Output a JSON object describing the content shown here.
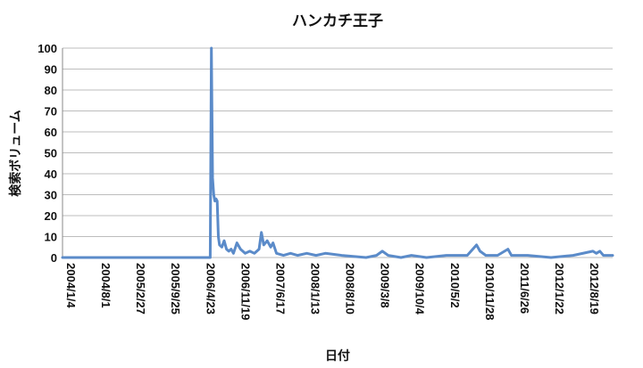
{
  "chart_data": {
    "type": "line",
    "title": "ハンカチ王子",
    "xlabel": "日付",
    "ylabel": "検索ボリューム",
    "ylim": [
      0,
      100
    ],
    "yticks": [
      0,
      10,
      20,
      30,
      40,
      50,
      60,
      70,
      80,
      90,
      100
    ],
    "grid": true,
    "legend": "none",
    "xlim": [
      "2004-01-04",
      "2013-01-27"
    ],
    "xtick_labels": [
      "2004/1/4",
      "2004/8/1",
      "2005/2/27",
      "2005/9/25",
      "2006/4/23",
      "2006/11/19",
      "2007/6/17",
      "2008/1/13",
      "2008/8/10",
      "2009/3/8",
      "2009/10/4",
      "2010/5/2",
      "2010/11/28",
      "2011/6/26",
      "2012/1/22",
      "2012/8/19"
    ],
    "xtick_dates": [
      "2004-01-04",
      "2004-08-01",
      "2005-02-27",
      "2005-09-25",
      "2006-04-23",
      "2006-11-19",
      "2007-06-17",
      "2008-01-13",
      "2008-08-10",
      "2009-03-08",
      "2009-10-04",
      "2010-05-02",
      "2010-11-28",
      "2011-06-26",
      "2012-01-22",
      "2012-08-19"
    ],
    "series": [
      {
        "color": "#5b8bc9",
        "points": [
          [
            "2004-01-04",
            0
          ],
          [
            "2006-06-11",
            0
          ],
          [
            "2006-06-18",
            100
          ],
          [
            "2006-06-25",
            38
          ],
          [
            "2006-07-02",
            30
          ],
          [
            "2006-07-09",
            27
          ],
          [
            "2006-07-16",
            28
          ],
          [
            "2006-07-23",
            27
          ],
          [
            "2006-07-30",
            10
          ],
          [
            "2006-08-06",
            6
          ],
          [
            "2006-08-20",
            5
          ],
          [
            "2006-09-03",
            8
          ],
          [
            "2006-09-17",
            4
          ],
          [
            "2006-10-01",
            3
          ],
          [
            "2006-10-15",
            4
          ],
          [
            "2006-10-29",
            2
          ],
          [
            "2006-11-19",
            7
          ],
          [
            "2006-12-10",
            4
          ],
          [
            "2007-01-07",
            2
          ],
          [
            "2007-02-04",
            3
          ],
          [
            "2007-03-04",
            2
          ],
          [
            "2007-04-01",
            4
          ],
          [
            "2007-04-15",
            12
          ],
          [
            "2007-04-29",
            6
          ],
          [
            "2007-05-20",
            8
          ],
          [
            "2007-06-10",
            5
          ],
          [
            "2007-06-24",
            7
          ],
          [
            "2007-07-15",
            2
          ],
          [
            "2007-08-26",
            1
          ],
          [
            "2007-10-07",
            2
          ],
          [
            "2007-11-18",
            1
          ],
          [
            "2008-01-13",
            2
          ],
          [
            "2008-03-09",
            1
          ],
          [
            "2008-05-04",
            2
          ],
          [
            "2008-08-10",
            1
          ],
          [
            "2009-01-04",
            0
          ],
          [
            "2009-03-08",
            1
          ],
          [
            "2009-04-12",
            3
          ],
          [
            "2009-05-17",
            1
          ],
          [
            "2009-08-02",
            0
          ],
          [
            "2009-10-04",
            1
          ],
          [
            "2010-01-03",
            0
          ],
          [
            "2010-05-02",
            1
          ],
          [
            "2010-09-05",
            1
          ],
          [
            "2010-10-31",
            6
          ],
          [
            "2010-11-21",
            3
          ],
          [
            "2010-12-26",
            1
          ],
          [
            "2011-03-06",
            1
          ],
          [
            "2011-05-08",
            4
          ],
          [
            "2011-05-29",
            1
          ],
          [
            "2011-09-04",
            1
          ],
          [
            "2012-01-22",
            0
          ],
          [
            "2012-06-03",
            1
          ],
          [
            "2012-09-30",
            3
          ],
          [
            "2012-10-21",
            2
          ],
          [
            "2012-11-11",
            3
          ],
          [
            "2012-12-02",
            1
          ],
          [
            "2013-01-27",
            1
          ]
        ]
      }
    ]
  }
}
